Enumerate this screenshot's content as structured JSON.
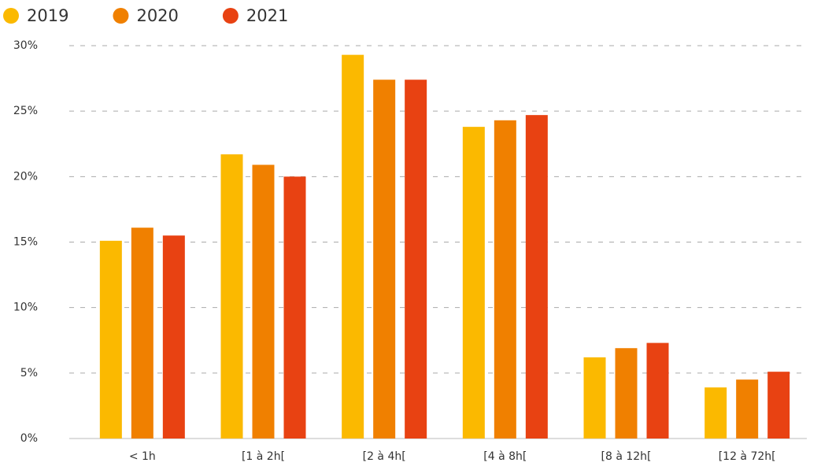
{
  "chart_data": {
    "type": "bar",
    "categories": [
      "< 1h",
      "[1 à 2h[",
      "[2 à 4h[",
      "[4 à 8h[",
      "[8 à 12h[",
      "[12 à 72h["
    ],
    "series": [
      {
        "name": "2019",
        "color": "#fbb900",
        "values": [
          15.1,
          21.7,
          29.3,
          23.8,
          6.2,
          3.9
        ]
      },
      {
        "name": "2020",
        "color": "#f08000",
        "values": [
          16.1,
          20.9,
          27.4,
          24.3,
          6.9,
          4.5
        ]
      },
      {
        "name": "2021",
        "color": "#e84212",
        "values": [
          15.5,
          20.0,
          27.4,
          24.7,
          7.3,
          5.1
        ]
      }
    ],
    "ylim": [
      0,
      30
    ],
    "yticks": [
      {
        "value": 0,
        "label": "0%"
      },
      {
        "value": 5,
        "label": "5%"
      },
      {
        "value": 10,
        "label": "10%"
      },
      {
        "value": 15,
        "label": "15%"
      },
      {
        "value": 20,
        "label": "20%"
      },
      {
        "value": 25,
        "label": "25%"
      },
      {
        "value": 30,
        "label": "30%"
      }
    ],
    "grid": true,
    "legend": "top-left"
  }
}
